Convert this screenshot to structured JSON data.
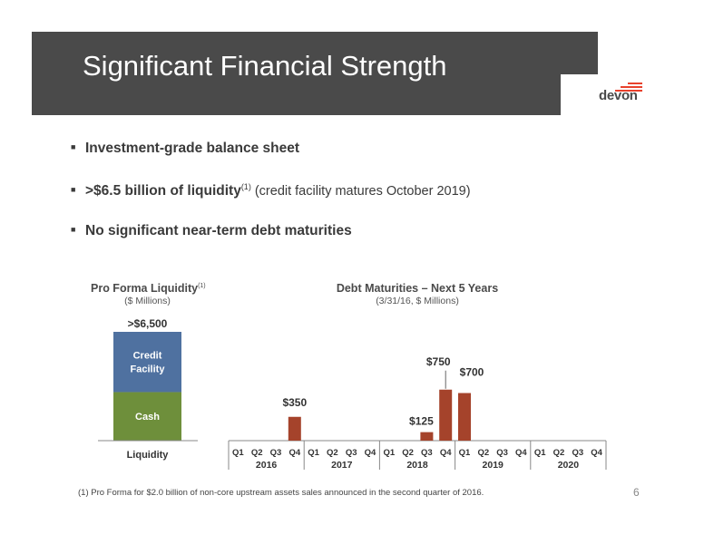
{
  "slide": {
    "title": "Significant Financial Strength",
    "logo_text": "devon",
    "page_number": "6"
  },
  "bullets": [
    {
      "bold": "Investment-grade balance sheet",
      "sup": "",
      "normal": ""
    },
    {
      "bold": ">$6.5 billion of liquidity",
      "sup": "(1)",
      "normal": " (credit facility matures October 2019)"
    },
    {
      "bold": "No significant near-term debt maturities",
      "sup": "",
      "normal": ""
    }
  ],
  "liquidity": {
    "title": "Pro Forma Liquidity",
    "title_sup": "(1)",
    "subtitle": "($ Millions)"
  },
  "debt": {
    "title": "Debt Maturities – Next 5 Years",
    "subtitle": "(3/31/16, $ Millions)"
  },
  "footnote": "(1) Pro Forma for $2.0 billion of non-core upstream assets sales announced in the second quarter of 2016.",
  "colors": {
    "title_bar": "#4a4a4a",
    "credit_facility": "#4f71a0",
    "cash": "#6e8f3b",
    "debt_bar": "#a5432b",
    "logo_accent": "#e8412c"
  },
  "chart_data": [
    {
      "type": "bar",
      "title": "Pro Forma Liquidity",
      "subtitle": "($ Millions)",
      "categories": [
        "Liquidity"
      ],
      "total_label": ">$6,500",
      "stacked": true,
      "series": [
        {
          "name": "Cash",
          "values": [
            2900
          ]
        },
        {
          "name": "Credit Facility",
          "values": [
            3600
          ]
        }
      ]
    },
    {
      "type": "bar",
      "title": "Debt Maturities – Next 5 Years",
      "subtitle": "(3/31/16, $ Millions)",
      "ylim": [
        0,
        800
      ],
      "categories": [
        "Q1",
        "Q2",
        "Q3",
        "Q4",
        "Q1",
        "Q2",
        "Q3",
        "Q4",
        "Q1",
        "Q2",
        "Q3",
        "Q4",
        "Q1",
        "Q2",
        "Q3",
        "Q4",
        "Q1",
        "Q2",
        "Q3",
        "Q4"
      ],
      "years": [
        "2016",
        "2017",
        "2018",
        "2019",
        "2020"
      ],
      "values": [
        0,
        0,
        0,
        350,
        0,
        0,
        0,
        0,
        0,
        0,
        125,
        750,
        700,
        0,
        0,
        0,
        0,
        0,
        0,
        0
      ],
      "data_labels": [
        "",
        "",
        "",
        "$350",
        "",
        "",
        "",
        "",
        "",
        "",
        "$125",
        "$750",
        "$700",
        "",
        "",
        "",
        "",
        "",
        "",
        ""
      ]
    }
  ]
}
